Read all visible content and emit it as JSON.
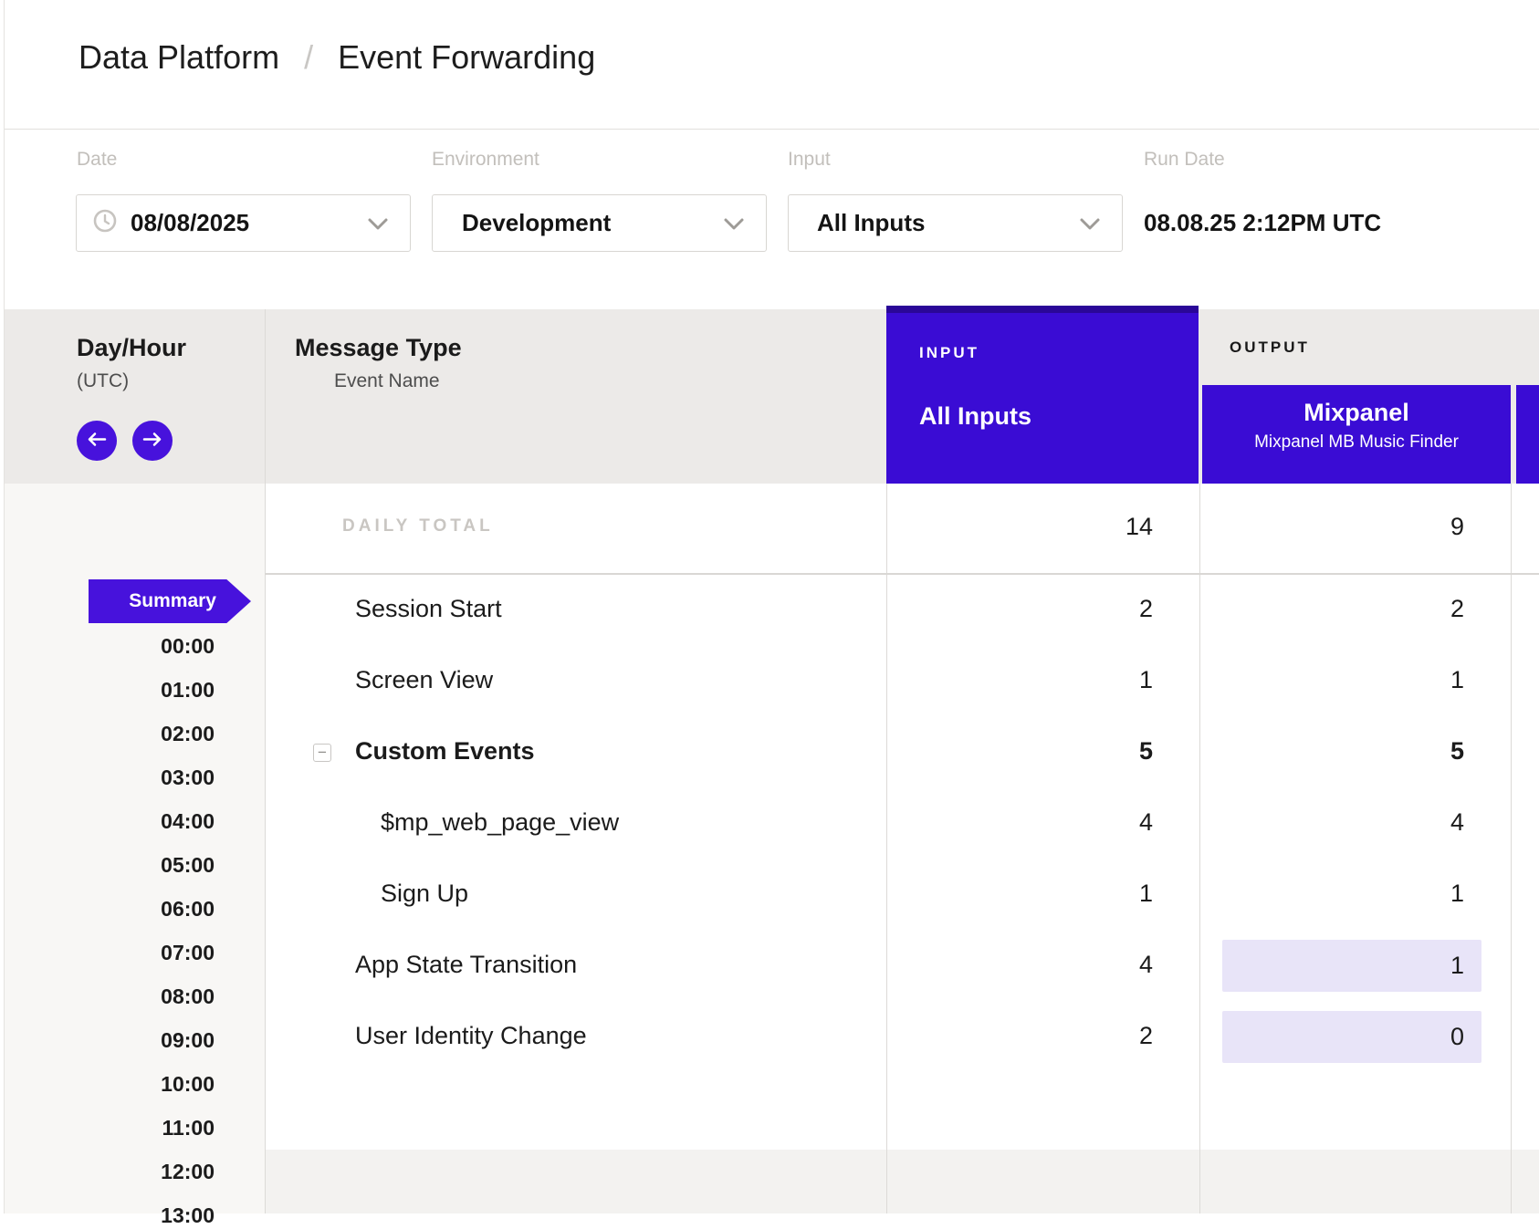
{
  "breadcrumb": {
    "items": [
      "Data Platform",
      "Event Forwarding"
    ],
    "separator": "/"
  },
  "filters": {
    "date": {
      "label": "Date",
      "value": "08/08/2025"
    },
    "environment": {
      "label": "Environment",
      "value": "Development"
    },
    "input": {
      "label": "Input",
      "value": "All Inputs"
    },
    "run_date": {
      "label": "Run Date",
      "value": "08.08.25 2:12PM UTC"
    }
  },
  "table": {
    "day_hour": {
      "title": "Day/Hour",
      "subtitle": "(UTC)"
    },
    "message_type": {
      "title": "Message Type",
      "subtitle": "Event Name"
    },
    "input_group": {
      "label": "INPUT",
      "selected_input": "All Inputs"
    },
    "output_group": {
      "label": "OUTPUT",
      "connection": "Mixpanel",
      "connection_subtitle": "Mixpanel MB Music Finder"
    },
    "daily_total": {
      "label": "DAILY TOTAL",
      "input_count": "14",
      "output_count": "9"
    },
    "rows": [
      {
        "label": "Session Start",
        "level": 0,
        "bold": false,
        "collapsible": false,
        "input_count": "2",
        "output_count": "2",
        "output_highlight": false
      },
      {
        "label": "Screen View",
        "level": 0,
        "bold": false,
        "collapsible": false,
        "input_count": "1",
        "output_count": "1",
        "output_highlight": false
      },
      {
        "label": "Custom Events",
        "level": 0,
        "bold": true,
        "collapsible": true,
        "input_count": "5",
        "output_count": "5",
        "output_highlight": false
      },
      {
        "label": "$mp_web_page_view",
        "level": 1,
        "bold": false,
        "collapsible": false,
        "input_count": "4",
        "output_count": "4",
        "output_highlight": false
      },
      {
        "label": "Sign Up",
        "level": 1,
        "bold": false,
        "collapsible": false,
        "input_count": "1",
        "output_count": "1",
        "output_highlight": false
      },
      {
        "label": "App State Transition",
        "level": 0,
        "bold": false,
        "collapsible": false,
        "input_count": "4",
        "output_count": "1",
        "output_highlight": true
      },
      {
        "label": "User Identity Change",
        "level": 0,
        "bold": false,
        "collapsible": false,
        "input_count": "2",
        "output_count": "0",
        "output_highlight": true
      }
    ],
    "sidebar": {
      "summary_label": "Summary",
      "hours": [
        "00:00",
        "01:00",
        "02:00",
        "03:00",
        "04:00",
        "05:00",
        "06:00",
        "07:00",
        "08:00",
        "09:00",
        "10:00",
        "11:00",
        "12:00",
        "13:00"
      ]
    }
  },
  "colors": {
    "accent_purple": "#3A0CD4",
    "accent_purple_dark": "#2A0798",
    "badge_purple": "#4712DC",
    "highlight_lavender": "#E8E4F8"
  }
}
